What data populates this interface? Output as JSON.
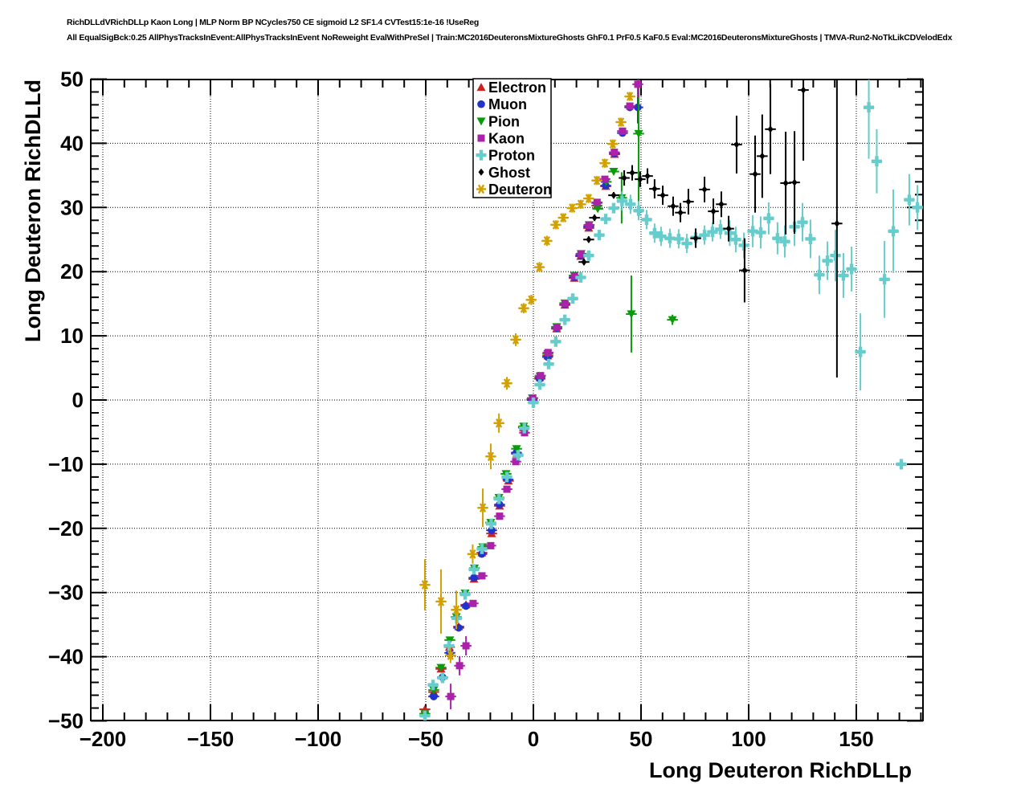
{
  "header": {
    "line1": "RichDLLdVRichDLLp Kaon Long | MLP Norm BP NCycles750 CE sigmoid L2 SF1.4 CVTest15:1e-16 !UseReg",
    "line2": "All EqualSigBck:0.25 AllPhysTracksInEvent:AllPhysTracksInEvent NoReweight EvalWithPreSel | Train:MC2016DeuteronsMixtureGhosts GhF0.1 PrF0.5 KaF0.5 Eval:MC2016DeuteronsMixtureGhosts | TMVA-Run2-NoTkLikCDVelodEdx"
  },
  "axes": {
    "x": {
      "title": "Long Deuteron RichDLLp",
      "min": -205.6,
      "max": 181,
      "major_ticks": [
        -200,
        -150,
        -100,
        -50,
        0,
        50,
        100,
        150
      ],
      "minor_step": 10
    },
    "y": {
      "title": "Long Deuteron RichDLLd",
      "min": -49.9,
      "max": 49.9,
      "major_ticks": [
        -50,
        -40,
        -30,
        -20,
        -10,
        0,
        10,
        20,
        30,
        40,
        50
      ],
      "minor_step": 2
    }
  },
  "legend": {
    "items": [
      {
        "label": "Electron",
        "marker": "triangle-up",
        "color": "#cc2222"
      },
      {
        "label": "Muon",
        "marker": "circle",
        "color": "#2233cc"
      },
      {
        "label": "Pion",
        "marker": "triangle-down",
        "color": "#0a9a0a"
      },
      {
        "label": "Kaon",
        "marker": "square",
        "color": "#aa22aa"
      },
      {
        "label": "Proton",
        "marker": "cross",
        "color": "#66cccc"
      },
      {
        "label": "Ghost",
        "marker": "diamond",
        "color": "#000000"
      },
      {
        "label": "Deuteron",
        "marker": "asterisk",
        "color": "#d2a000"
      }
    ]
  },
  "chart_data": {
    "type": "scatter",
    "title": "",
    "xlabel": "Long Deuteron RichDLLp",
    "ylabel": "Long Deuteron RichDLLd",
    "xlim": [
      -205.6,
      181
    ],
    "ylim": [
      -49.9,
      49.9
    ],
    "grid": true,
    "grid_style": "dotted",
    "legend_position": "top-center",
    "x_error_halfwidth": 1.7,
    "series": [
      {
        "name": "Electron",
        "marker": "triangle-up",
        "color": "#cc2222",
        "points": [
          [
            -50.4,
            -48.2
          ],
          [
            -46.3,
            -45.5
          ],
          [
            -42.9,
            -41.9
          ],
          [
            -39,
            -38.5
          ],
          [
            -34.7,
            -35.3
          ],
          [
            -31.3,
            -31.9
          ],
          [
            -27.6,
            -27.9
          ],
          [
            -23.9,
            -23.8
          ],
          [
            -19.4,
            -20.8
          ],
          [
            -15.7,
            -16.5
          ],
          [
            -11.6,
            -12.6
          ],
          [
            -7.8,
            -8.4
          ],
          [
            -4.6,
            -4.3
          ],
          [
            -0.7,
            0.1
          ],
          [
            3,
            3.5
          ],
          [
            6.7,
            6.9
          ],
          [
            10.8,
            11.1
          ],
          [
            14.6,
            14.8
          ],
          [
            19,
            19
          ],
          [
            22,
            22.4
          ],
          [
            25.7,
            26.8
          ],
          [
            29.5,
            30.3
          ],
          [
            33.6,
            33.3
          ],
          [
            37.7,
            38.3
          ]
        ]
      },
      {
        "name": "Muon",
        "marker": "circle",
        "color": "#2233cc",
        "points": [
          [
            -46.3,
            -46.2
          ],
          [
            -42.2,
            -43.2
          ],
          [
            -38.8,
            -39.4
          ],
          [
            -34.7,
            -35.5
          ],
          [
            -31.3,
            -32.1
          ],
          [
            -27.6,
            -27.7
          ],
          [
            -24,
            -24
          ],
          [
            -19.4,
            -20.3
          ],
          [
            -15.7,
            -16.3
          ],
          [
            -11.8,
            -12.4
          ],
          [
            -7.9,
            -8.2
          ],
          [
            -4.4,
            -4.2
          ],
          [
            -0.6,
            0
          ],
          [
            3,
            3.3
          ],
          [
            6.6,
            6.7
          ],
          [
            10.8,
            11.2
          ],
          [
            14.6,
            14.9
          ],
          [
            19,
            19.1
          ],
          [
            22,
            22.5
          ],
          [
            25.7,
            27
          ],
          [
            29.5,
            30.7
          ],
          [
            33.6,
            33.4
          ],
          [
            37.7,
            38.4
          ],
          [
            41.4,
            41.6
          ],
          [
            44.8,
            45.6
          ],
          [
            48.5,
            45.6,
            2.5
          ]
        ]
      },
      {
        "name": "Pion",
        "marker": "triangle-down",
        "color": "#0a9a0a",
        "points": [
          [
            -50.4,
            -48.9
          ],
          [
            -46.3,
            -45.2
          ],
          [
            -42.9,
            -41.7
          ],
          [
            -38.8,
            -37.4
          ],
          [
            -35.8,
            -33.8
          ],
          [
            -31.7,
            -30.1
          ],
          [
            -27.4,
            -26.2
          ],
          [
            -23.5,
            -22.9
          ],
          [
            -19.8,
            -19.1
          ],
          [
            -16,
            -15.2
          ],
          [
            -12.7,
            -11.5
          ],
          [
            -7.8,
            -7.6
          ],
          [
            -4.5,
            -4.1
          ],
          [
            -0.5,
            0.3
          ],
          [
            3.1,
            3.7
          ],
          [
            6.7,
            7.2
          ],
          [
            10.8,
            11.4
          ],
          [
            14.6,
            15.1
          ],
          [
            19,
            19.4
          ],
          [
            22.2,
            22.8
          ],
          [
            25.9,
            27.3
          ],
          [
            29.9,
            29.8
          ],
          [
            33.8,
            34
          ],
          [
            37.3,
            35.6
          ],
          [
            41,
            31.5,
            4
          ],
          [
            45.5,
            13.4,
            6
          ],
          [
            48.9,
            41.5,
            13
          ],
          [
            64.6,
            12.5,
            0.8
          ]
        ]
      },
      {
        "name": "Kaon",
        "marker": "square",
        "color": "#aa22aa",
        "points": [
          [
            -38.4,
            -46.2,
            2
          ],
          [
            -34.3,
            -41.4,
            1.5
          ],
          [
            -31.3,
            -38.3,
            1.5
          ],
          [
            -28,
            -31.7
          ],
          [
            -23.9,
            -27.4
          ],
          [
            -19.8,
            -22.7
          ],
          [
            -15.7,
            -18.1
          ],
          [
            -12.3,
            -13.9
          ],
          [
            -8.2,
            -9.6
          ],
          [
            -4.1,
            -5.1
          ],
          [
            -0.3,
            0.3
          ],
          [
            3.3,
            3.8
          ],
          [
            6.8,
            7.4
          ],
          [
            10.9,
            11.3
          ],
          [
            14.7,
            15
          ],
          [
            19.1,
            19.3
          ],
          [
            22.1,
            22.7
          ],
          [
            25.8,
            27.2
          ],
          [
            29.6,
            30.8
          ],
          [
            33.2,
            34.4
          ],
          [
            37.6,
            38.6
          ],
          [
            41.4,
            41.9
          ],
          [
            44.8,
            45.8
          ],
          [
            48.5,
            49.2,
            2
          ]
        ]
      },
      {
        "name": "Proton",
        "marker": "cross",
        "color": "#66cccc",
        "points": [
          [
            -50.4,
            -49.2
          ],
          [
            -46.6,
            -44.4
          ],
          [
            -42.2,
            -43.3
          ],
          [
            -39.2,
            -38.3
          ],
          [
            -35.6,
            -34
          ],
          [
            -31.7,
            -30.3
          ],
          [
            -27.6,
            -26.4
          ],
          [
            -23.9,
            -23.2
          ],
          [
            -19.6,
            -19.3
          ],
          [
            -16,
            -15.4
          ],
          [
            -12.3,
            -12
          ],
          [
            -7.1,
            -8.6
          ],
          [
            -4.2,
            -4.4
          ],
          [
            0,
            -0.4
          ],
          [
            3,
            2.4
          ],
          [
            7.1,
            5.6
          ],
          [
            10.4,
            9.1
          ],
          [
            14.6,
            12.5
          ],
          [
            18.3,
            15.8
          ],
          [
            22,
            19.1
          ],
          [
            25.7,
            22.5
          ],
          [
            30.6,
            25.7
          ],
          [
            33.6,
            28.2
          ],
          [
            37.3,
            29.9
          ],
          [
            41.2,
            31,
            1.5
          ],
          [
            45.1,
            30.5,
            1.5
          ],
          [
            48.9,
            29.5,
            1.5
          ],
          [
            52.6,
            28.1,
            1.5
          ],
          [
            56.3,
            26,
            1.5
          ],
          [
            59.3,
            25.5,
            1.5
          ],
          [
            63.4,
            25.2,
            1.5
          ],
          [
            67.5,
            25.1,
            1.5
          ],
          [
            71.3,
            24.4,
            1.5
          ],
          [
            75.4,
            25.3,
            1.5
          ],
          [
            79.5,
            25.7,
            1.5
          ],
          [
            83.2,
            26.2,
            1.5
          ],
          [
            86.9,
            26.6,
            1.5
          ],
          [
            91.2,
            26,
            2
          ],
          [
            94,
            25,
            2
          ],
          [
            97.8,
            24.1,
            2
          ],
          [
            101.9,
            26.3,
            2.5
          ],
          [
            105.6,
            26.1,
            2.5
          ],
          [
            109.3,
            28.3,
            2.5
          ],
          [
            113.4,
            25.2,
            2.5
          ],
          [
            116.8,
            24.7,
            2.5
          ],
          [
            121.3,
            27,
            3
          ],
          [
            125,
            27.7,
            3
          ],
          [
            128.7,
            25.1,
            3
          ],
          [
            132.8,
            19.5,
            3
          ],
          [
            136.6,
            21.7,
            3
          ],
          [
            140.3,
            22.5,
            4
          ],
          [
            144,
            19.4,
            3.5
          ],
          [
            147.8,
            20.4,
            3.5
          ],
          [
            151.9,
            7.5,
            6
          ],
          [
            155.8,
            45.6,
            8
          ],
          [
            159.5,
            37.2,
            5
          ],
          [
            163.1,
            18.8,
            6
          ],
          [
            167.2,
            26.3,
            6.5
          ],
          [
            170.9,
            -10,
            0.8
          ],
          [
            174.6,
            31.2,
            4
          ],
          [
            178.4,
            30,
            3.5
          ]
        ]
      },
      {
        "name": "Ghost",
        "marker": "diamond",
        "color": "#000000",
        "points": [
          [
            23.5,
            21.5
          ],
          [
            25.7,
            25
          ],
          [
            28.4,
            28.4
          ],
          [
            37.3,
            31.9
          ],
          [
            42.2,
            34.6,
            1.2
          ],
          [
            45.9,
            35.4,
            1.2
          ],
          [
            49.6,
            34.4,
            1.2
          ],
          [
            53,
            34.9,
            1.2
          ],
          [
            56.3,
            32.9,
            1.5
          ],
          [
            60.1,
            31.9,
            1.5
          ],
          [
            64.9,
            30.2,
            1.5
          ],
          [
            68.3,
            29.2,
            1.5
          ],
          [
            72,
            30.9,
            2
          ],
          [
            75.4,
            25.2,
            1.5
          ],
          [
            79.5,
            32.8,
            2
          ],
          [
            83.6,
            29.4,
            2
          ],
          [
            87.3,
            30.5,
            2
          ],
          [
            90.7,
            26.7,
            2
          ],
          [
            94.4,
            39.8,
            4.5
          ],
          [
            98.1,
            20.2,
            5
          ],
          [
            103,
            35.2,
            6
          ],
          [
            106.3,
            38,
            6.5
          ],
          [
            110.1,
            42.2,
            7
          ],
          [
            117.2,
            33.8,
            8
          ],
          [
            121.3,
            33.9,
            8
          ],
          [
            125.4,
            48.3,
            11
          ],
          [
            141,
            27.5,
            24
          ]
        ]
      },
      {
        "name": "Deuteron",
        "marker": "asterisk",
        "color": "#d2a000",
        "points": [
          [
            -50.4,
            -28.8,
            4
          ],
          [
            -42.9,
            -31.4,
            5
          ],
          [
            -38.5,
            -39.8,
            1.2
          ],
          [
            -35.8,
            -32.7,
            3
          ],
          [
            -28.2,
            -24,
            1.5
          ],
          [
            -23.5,
            -16.8,
            3
          ],
          [
            -19.8,
            -8.8,
            2
          ],
          [
            -16,
            -3.6,
            1.5
          ],
          [
            -12.3,
            2.6,
            1
          ],
          [
            -8.2,
            9.4,
            1
          ],
          [
            -4.5,
            14.3,
            0.8
          ],
          [
            -1,
            15.6,
            0.8
          ],
          [
            2.8,
            20.7,
            0.8
          ],
          [
            6.3,
            24.8,
            0.8
          ],
          [
            10.4,
            27.3,
            0.7
          ],
          [
            13.9,
            28.4,
            0.7
          ],
          [
            18,
            29.9,
            0.7
          ],
          [
            22,
            30.5,
            0.7
          ],
          [
            25.7,
            31.4,
            0.7
          ],
          [
            29.5,
            34.2,
            0.7
          ],
          [
            33.2,
            36.9,
            0.7
          ],
          [
            36.9,
            39.9,
            0.7
          ],
          [
            40.7,
            43.3,
            0.7
          ],
          [
            44.8,
            47.3,
            0.7
          ]
        ]
      }
    ]
  }
}
